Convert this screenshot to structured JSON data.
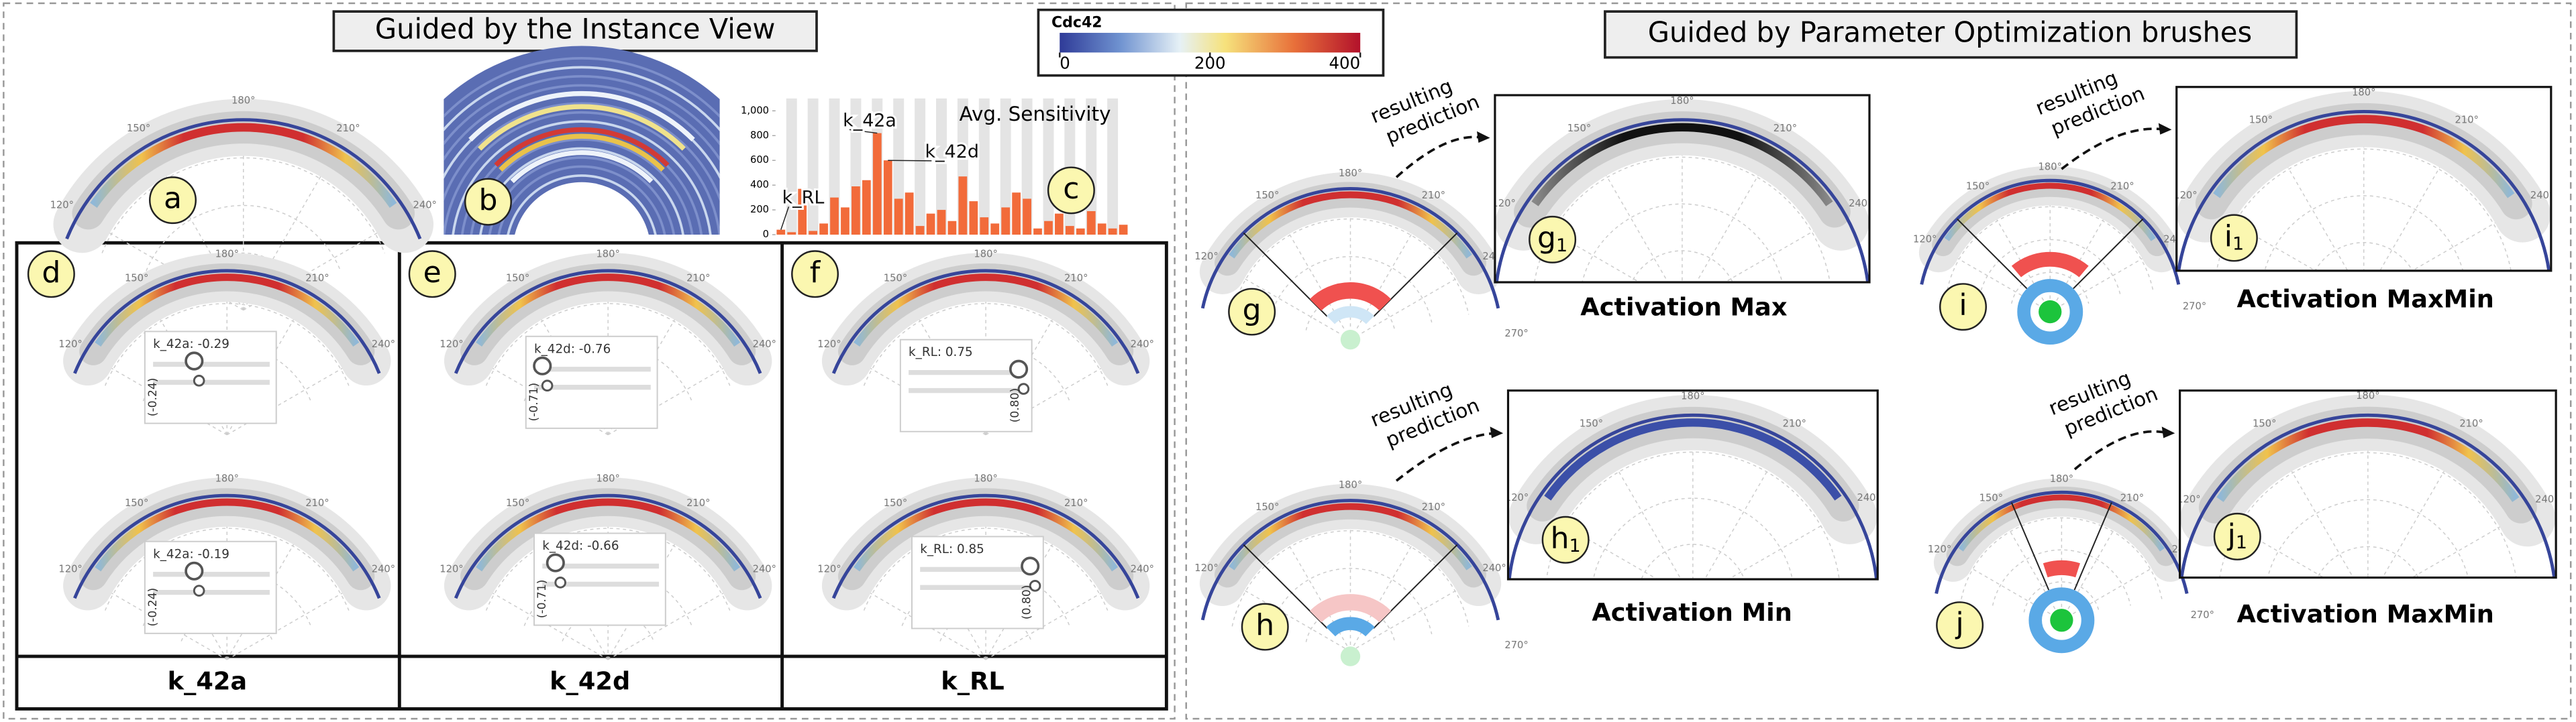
{
  "left_title": "Guided by the Instance View",
  "right_title": "Guided by Parameter Optimization brushes",
  "colorbar": {
    "title": "Cdc42",
    "lim": [
      0,
      400
    ],
    "ticks": [
      0,
      200,
      400
    ]
  },
  "polar_angle_labels": [
    "120°",
    "150°",
    "180°",
    "210°",
    "240°",
    "270°"
  ],
  "instance_labels": [
    "a",
    "b",
    "c"
  ],
  "chart_data": {
    "type": "bar",
    "title": "Avg. Sensitivity",
    "color": "#f26b3a",
    "ylim": [
      0,
      1100
    ],
    "yticks": [
      0,
      200,
      400,
      600,
      800,
      {
        "value": 1000,
        "label": "1,000"
      }
    ],
    "values": [
      40,
      20,
      370,
      30,
      90,
      300,
      220,
      390,
      440,
      820,
      600,
      290,
      340,
      70,
      170,
      200,
      110,
      470,
      270,
      140,
      90,
      220,
      340,
      290,
      50,
      110,
      170,
      70,
      50,
      190,
      90,
      50,
      80
    ],
    "annotations": [
      "k_RL",
      "k_42a",
      "k_42d"
    ]
  },
  "parameter_columns": [
    {
      "label": "d",
      "name": "k_42a",
      "sliders": [
        {
          "value_text": "k_42a: -0.29",
          "range_text": "(-0.24)"
        },
        {
          "value_text": "k_42a: -0.19",
          "range_text": "(-0.24)"
        }
      ]
    },
    {
      "label": "e",
      "name": "k_42d",
      "sliders": [
        {
          "value_text": "k_42d: -0.76",
          "range_text": "(-0.71)"
        },
        {
          "value_text": "k_42d: -0.66",
          "range_text": "(-0.71)"
        }
      ]
    },
    {
      "label": "f",
      "name": "k_RL",
      "sliders": [
        {
          "value_text": "k_RL: 0.75",
          "range_text": "(0.80)"
        },
        {
          "value_text": "k_RL: 0.85",
          "range_text": "(0.80)"
        }
      ]
    }
  ],
  "brushes": [
    {
      "label": "g",
      "result_label": "g",
      "result_subscript": "1",
      "caption": "Activation Max",
      "prompt": [
        "resulting",
        "prediction"
      ]
    },
    {
      "label": "h",
      "result_label": "h",
      "result_subscript": "1",
      "caption": "Activation Min",
      "prompt": [
        "resulting",
        "prediction"
      ]
    },
    {
      "label": "i",
      "result_label": "i",
      "result_subscript": "1",
      "caption": "Activation MaxMin",
      "prompt": [
        "resulting",
        "prediction"
      ]
    },
    {
      "label": "j",
      "result_label": "j",
      "result_subscript": "1",
      "caption": "Activation MaxMin",
      "prompt": [
        "resulting",
        "prediction"
      ]
    }
  ]
}
